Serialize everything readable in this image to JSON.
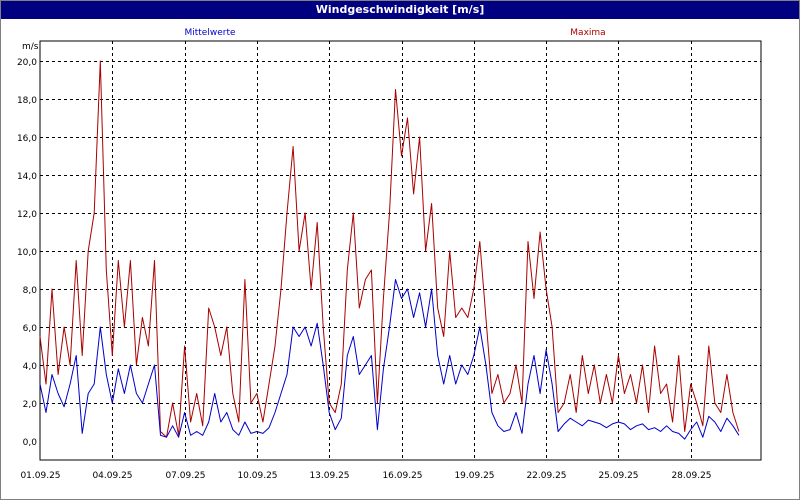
{
  "window": {
    "title": "Windgeschwindigkeit [m/s]"
  },
  "chart_data": {
    "type": "line",
    "title": "Windgeschwindigkeit [m/s]",
    "ylabel": "m/s",
    "xlabel": "",
    "ylim": [
      0,
      20.5
    ],
    "xlim": [
      "01.09.25",
      "30.09.25"
    ],
    "grid": true,
    "y_ticks": [
      "0,0",
      "2,0",
      "4,0",
      "6,0",
      "8,0",
      "10,0",
      "12,0",
      "14,0",
      "16,0",
      "18,0",
      "20,0"
    ],
    "x_ticks": [
      "01.09.25",
      "04.09.25",
      "07.09.25",
      "10.09.25",
      "13.09.25",
      "16.09.25",
      "19.09.25",
      "22.09.25",
      "25.09.25",
      "28.09.25"
    ],
    "legend": [
      "Mittelwerte",
      "Maxima"
    ],
    "series": [
      {
        "name": "Mittelwerte",
        "color": "#0000cc",
        "x": [
          1.0,
          1.25,
          1.5,
          1.75,
          2.0,
          2.25,
          2.5,
          2.75,
          3.0,
          3.25,
          3.5,
          3.75,
          4.0,
          4.25,
          4.5,
          4.75,
          5.0,
          5.25,
          5.5,
          5.75,
          6.0,
          6.25,
          6.5,
          6.75,
          7.0,
          7.25,
          7.5,
          7.75,
          8.0,
          8.25,
          8.5,
          8.75,
          9.0,
          9.25,
          9.5,
          9.75,
          10.0,
          10.25,
          10.5,
          10.75,
          11.0,
          11.25,
          11.5,
          11.75,
          12.0,
          12.25,
          12.5,
          12.75,
          13.0,
          13.25,
          13.5,
          13.75,
          14.0,
          14.25,
          14.5,
          14.75,
          15.0,
          15.25,
          15.5,
          15.75,
          16.0,
          16.25,
          16.5,
          16.75,
          17.0,
          17.25,
          17.5,
          17.75,
          18.0,
          18.25,
          18.5,
          18.75,
          19.0,
          19.25,
          19.5,
          19.75,
          20.0,
          20.25,
          20.5,
          20.75,
          21.0,
          21.25,
          21.5,
          21.75,
          22.0,
          22.25,
          22.5,
          22.75,
          23.0,
          23.25,
          23.5,
          23.75,
          24.0,
          24.25,
          24.5,
          24.75,
          25.0,
          25.25,
          25.5,
          25.75,
          26.0,
          26.25,
          26.5,
          26.75,
          27.0,
          27.25,
          27.5,
          27.75,
          28.0,
          28.25,
          28.5,
          28.75,
          29.0,
          29.25,
          29.5,
          29.75,
          30.0
        ],
        "y": [
          3.0,
          1.5,
          3.5,
          2.5,
          1.8,
          3.0,
          4.5,
          0.4,
          2.5,
          3.0,
          6.0,
          3.5,
          2.0,
          3.8,
          2.5,
          4.0,
          2.5,
          2.0,
          3.0,
          4.0,
          0.3,
          0.2,
          0.8,
          0.2,
          1.5,
          0.3,
          0.5,
          0.3,
          1.0,
          2.5,
          1.0,
          1.5,
          0.6,
          0.3,
          1.0,
          0.4,
          0.5,
          0.4,
          0.7,
          1.5,
          2.5,
          3.5,
          6.0,
          5.5,
          6.0,
          5.0,
          6.2,
          4.0,
          1.5,
          0.6,
          1.2,
          4.5,
          5.5,
          3.5,
          4.0,
          4.5,
          0.6,
          3.8,
          6.0,
          8.5,
          7.5,
          8.0,
          6.5,
          7.8,
          6.0,
          8.0,
          4.5,
          3.0,
          4.5,
          3.0,
          4.0,
          3.5,
          4.5,
          6.0,
          4.0,
          1.5,
          0.8,
          0.5,
          0.6,
          1.5,
          0.4,
          3.0,
          4.5,
          2.5,
          4.8,
          3.0,
          0.5,
          0.9,
          1.2,
          1.0,
          0.8,
          1.1,
          1.0,
          0.9,
          0.7,
          0.9,
          1.0,
          0.9,
          0.6,
          0.8,
          0.9,
          0.6,
          0.7,
          0.5,
          0.8,
          0.5,
          0.4,
          0.1,
          0.6,
          1.0,
          0.2,
          1.3,
          1.0,
          0.5,
          1.2,
          0.8,
          0.3
        ]
      },
      {
        "name": "Maxima",
        "color": "#aa0000",
        "x": [
          1.0,
          1.25,
          1.5,
          1.75,
          2.0,
          2.25,
          2.5,
          2.75,
          3.0,
          3.25,
          3.5,
          3.75,
          4.0,
          4.25,
          4.5,
          4.75,
          5.0,
          5.25,
          5.5,
          5.75,
          6.0,
          6.25,
          6.5,
          6.75,
          7.0,
          7.25,
          7.5,
          7.75,
          8.0,
          8.25,
          8.5,
          8.75,
          9.0,
          9.25,
          9.5,
          9.75,
          10.0,
          10.25,
          10.5,
          10.75,
          11.0,
          11.25,
          11.5,
          11.75,
          12.0,
          12.25,
          12.5,
          12.75,
          13.0,
          13.25,
          13.5,
          13.75,
          14.0,
          14.25,
          14.5,
          14.75,
          15.0,
          15.25,
          15.5,
          15.75,
          16.0,
          16.25,
          16.5,
          16.75,
          17.0,
          17.25,
          17.5,
          17.75,
          18.0,
          18.25,
          18.5,
          18.75,
          19.0,
          19.25,
          19.5,
          19.75,
          20.0,
          20.25,
          20.5,
          20.75,
          21.0,
          21.25,
          21.5,
          21.75,
          22.0,
          22.25,
          22.5,
          22.75,
          23.0,
          23.25,
          23.5,
          23.75,
          24.0,
          24.25,
          24.5,
          24.75,
          25.0,
          25.25,
          25.5,
          25.75,
          26.0,
          26.25,
          26.5,
          26.75,
          27.0,
          27.25,
          27.5,
          27.75,
          28.0,
          28.25,
          28.5,
          28.75,
          29.0,
          29.25,
          29.5,
          29.75,
          30.0
        ],
        "y": [
          5.5,
          3.0,
          8.0,
          3.5,
          6.0,
          4.0,
          9.5,
          4.5,
          10.0,
          12.0,
          20.0,
          9.0,
          4.5,
          9.5,
          6.0,
          9.5,
          4.0,
          6.5,
          5.0,
          9.5,
          0.5,
          0.2,
          2.0,
          0.3,
          5.0,
          1.0,
          2.5,
          0.8,
          7.0,
          6.0,
          4.5,
          6.0,
          2.5,
          1.0,
          8.5,
          2.0,
          2.5,
          1.0,
          3.0,
          5.0,
          8.0,
          12.0,
          15.5,
          10.0,
          12.0,
          8.0,
          11.5,
          6.0,
          2.0,
          1.5,
          3.0,
          9.0,
          12.0,
          7.0,
          8.5,
          9.0,
          2.0,
          7.5,
          12.0,
          18.5,
          15.0,
          17.0,
          13.0,
          16.0,
          10.0,
          12.5,
          7.0,
          5.5,
          10.0,
          6.5,
          7.0,
          6.5,
          8.0,
          10.5,
          6.5,
          2.5,
          3.5,
          2.0,
          2.5,
          4.0,
          2.0,
          10.5,
          7.5,
          11.0,
          8.0,
          6.0,
          1.5,
          2.0,
          3.5,
          1.5,
          4.5,
          2.5,
          4.0,
          2.0,
          3.5,
          2.0,
          4.5,
          2.5,
          3.5,
          2.0,
          4.0,
          1.5,
          5.0,
          2.5,
          3.0,
          1.0,
          4.5,
          0.5,
          3.0,
          2.0,
          0.8,
          5.0,
          2.0,
          1.5,
          3.5,
          1.5,
          0.5
        ]
      }
    ]
  }
}
